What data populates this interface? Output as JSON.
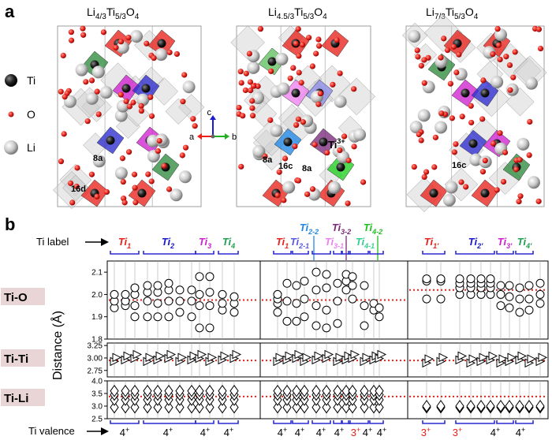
{
  "panel_a": {
    "label": "a",
    "structures": [
      {
        "base": "Li",
        "sub1": "4/3",
        "mid": "Ti",
        "sub2": "5/3",
        "end": "O",
        "sub3": "4",
        "sites": [
          "8a",
          "16d"
        ]
      },
      {
        "base": "Li",
        "sub1": "4.5/3",
        "mid": "Ti",
        "sub2": "5/3",
        "end": "O",
        "sub3": "4",
        "sites": [
          "8a",
          "16c",
          "8a"
        ],
        "ti3_label": "Ti",
        "ti3_sup": "3+"
      },
      {
        "base": "Li",
        "sub1": "7/3",
        "mid": "Ti",
        "sub2": "5/3",
        "end": "O",
        "sub3": "4",
        "sites": [
          "16c"
        ]
      }
    ],
    "legend": [
      {
        "label": "Ti",
        "color": "#111111"
      },
      {
        "label": "O",
        "color": "#e8211b"
      },
      {
        "label": "Li",
        "color": "#c7c7c7"
      }
    ],
    "axes": {
      "c": "c",
      "a": "a",
      "b": "b"
    }
  },
  "panel_b": {
    "label": "b",
    "ti_label_title": "Ti label",
    "ti_valence_title": "Ti valence",
    "ylabel": "Distance (Å)",
    "rows": [
      {
        "name": "Ti-O",
        "ticks": [
          "2.1",
          "2.0",
          "1.9",
          "1.8"
        ],
        "ylim": [
          1.8,
          2.15
        ],
        "mean": 1.975
      },
      {
        "name": "Ti-Ti",
        "ticks": [
          "3.25",
          "3.00",
          "2.75"
        ],
        "ylim": [
          2.62,
          3.3
        ],
        "mean": 2.95
      },
      {
        "name": "Ti-Li",
        "ticks": [
          "4.0",
          "3.5",
          "3.0",
          "2.5"
        ],
        "ylim": [
          2.5,
          4.0
        ],
        "mean": 3.38
      }
    ],
    "groups": [
      {
        "base": "Ti",
        "sub": "1",
        "color": "#e8211b",
        "valence": "4",
        "vcolor": "#000000"
      },
      {
        "base": "Ti",
        "sub": "2",
        "color": "#1a1ac8",
        "valence": "4",
        "vcolor": "#000000"
      },
      {
        "base": "Ti",
        "sub": "3",
        "color": "#d020d0",
        "valence": "4",
        "vcolor": "#000000"
      },
      {
        "base": "Ti",
        "sub": "4",
        "color": "#20a050",
        "valence": "4",
        "vcolor": "#000000"
      },
      {
        "base": "Ti",
        "sub": "1",
        "color": "#e8211b",
        "valence": "4",
        "vcolor": "#000000"
      },
      {
        "base": "Ti",
        "sub": "2-1",
        "color": "#5a5ae0",
        "valence": "4",
        "vcolor": "#000000"
      },
      {
        "base": "Ti",
        "sub": "2-2",
        "color": "#1e88e5",
        "valence": "4",
        "vcolor": "#000000"
      },
      {
        "base": "Ti",
        "sub": "3-1",
        "color": "#f080f0",
        "valence": "4",
        "vcolor": "#000000"
      },
      {
        "base": "Ti",
        "sub": "3-2",
        "color": "#7b2a7b",
        "valence": "3",
        "vcolor": "#e8211b"
      },
      {
        "base": "Ti",
        "sub": "4-1",
        "color": "#30d090",
        "valence": "4",
        "vcolor": "#000000"
      },
      {
        "base": "Ti",
        "sub": "4-2",
        "color": "#20c020",
        "valence": "4",
        "vcolor": "#000000"
      },
      {
        "base": "Ti",
        "sub": "1′",
        "color": "#e8211b",
        "valence": "3",
        "vcolor": "#e8211b"
      },
      {
        "base": "Ti",
        "sub": "2′",
        "color": "#1a1ac8",
        "valence": "3",
        "vcolor": "#e8211b"
      },
      {
        "base": "Ti",
        "sub": "3′",
        "color": "#d020d0",
        "valence": "4",
        "vcolor": "#000000"
      },
      {
        "base": "Ti",
        "sub": "4′",
        "color": "#20a050",
        "valence": "4",
        "vcolor": "#000000"
      }
    ]
  }
}
